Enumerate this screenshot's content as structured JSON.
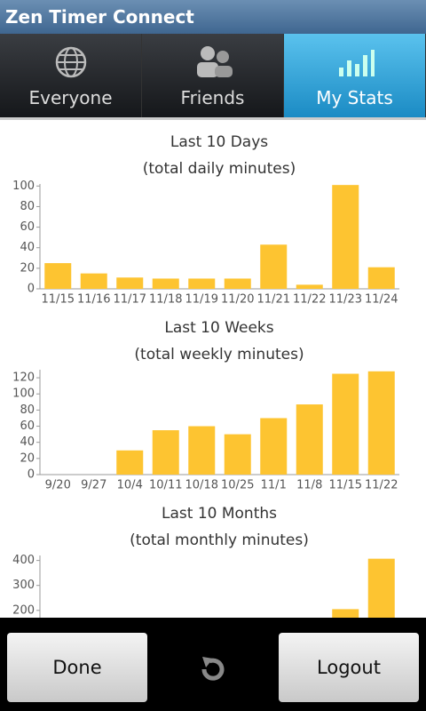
{
  "app_title": "Zen Timer Connect",
  "tabs": [
    "Everyone",
    "Friends",
    "My Stats"
  ],
  "selected_tab": 2,
  "chart_data": [
    {
      "type": "bar",
      "title": "Last 10 Days",
      "subtitle": "(total daily minutes)",
      "categories": [
        "11/15",
        "11/16",
        "11/17",
        "11/18",
        "11/19",
        "11/20",
        "11/21",
        "11/22",
        "11/23",
        "11/24"
      ],
      "values": [
        25,
        15,
        11,
        10,
        10,
        10,
        43,
        4,
        101,
        21
      ],
      "color": "#fdc431",
      "ylim": [
        0,
        102
      ],
      "yticks": [
        0,
        20,
        40,
        60,
        80,
        100
      ]
    },
    {
      "type": "bar",
      "title": "Last 10 Weeks",
      "subtitle": "(total weekly minutes)",
      "categories": [
        "9/20",
        "9/27",
        "10/4",
        "10/11",
        "10/18",
        "10/25",
        "11/1",
        "11/8",
        "11/15",
        "11/22"
      ],
      "values": [
        0,
        0,
        30,
        55,
        60,
        50,
        70,
        87,
        125,
        128
      ],
      "color": "#fdc431",
      "ylim": [
        0,
        130
      ],
      "yticks": [
        0,
        20,
        40,
        60,
        80,
        100,
        120
      ]
    },
    {
      "type": "bar",
      "title": "Last 10 Months",
      "subtitle": "(total monthly minutes)",
      "categories": [
        null,
        null,
        null,
        null,
        null,
        null,
        null,
        null,
        null,
        null
      ],
      "values": [
        null,
        null,
        null,
        null,
        null,
        null,
        null,
        null,
        205,
        407
      ],
      "color": "#fdc431",
      "ylim": [
        0,
        420
      ],
      "yticks": [
        200,
        300,
        400
      ]
    }
  ],
  "buttons": [
    "Done",
    "Logout"
  ]
}
